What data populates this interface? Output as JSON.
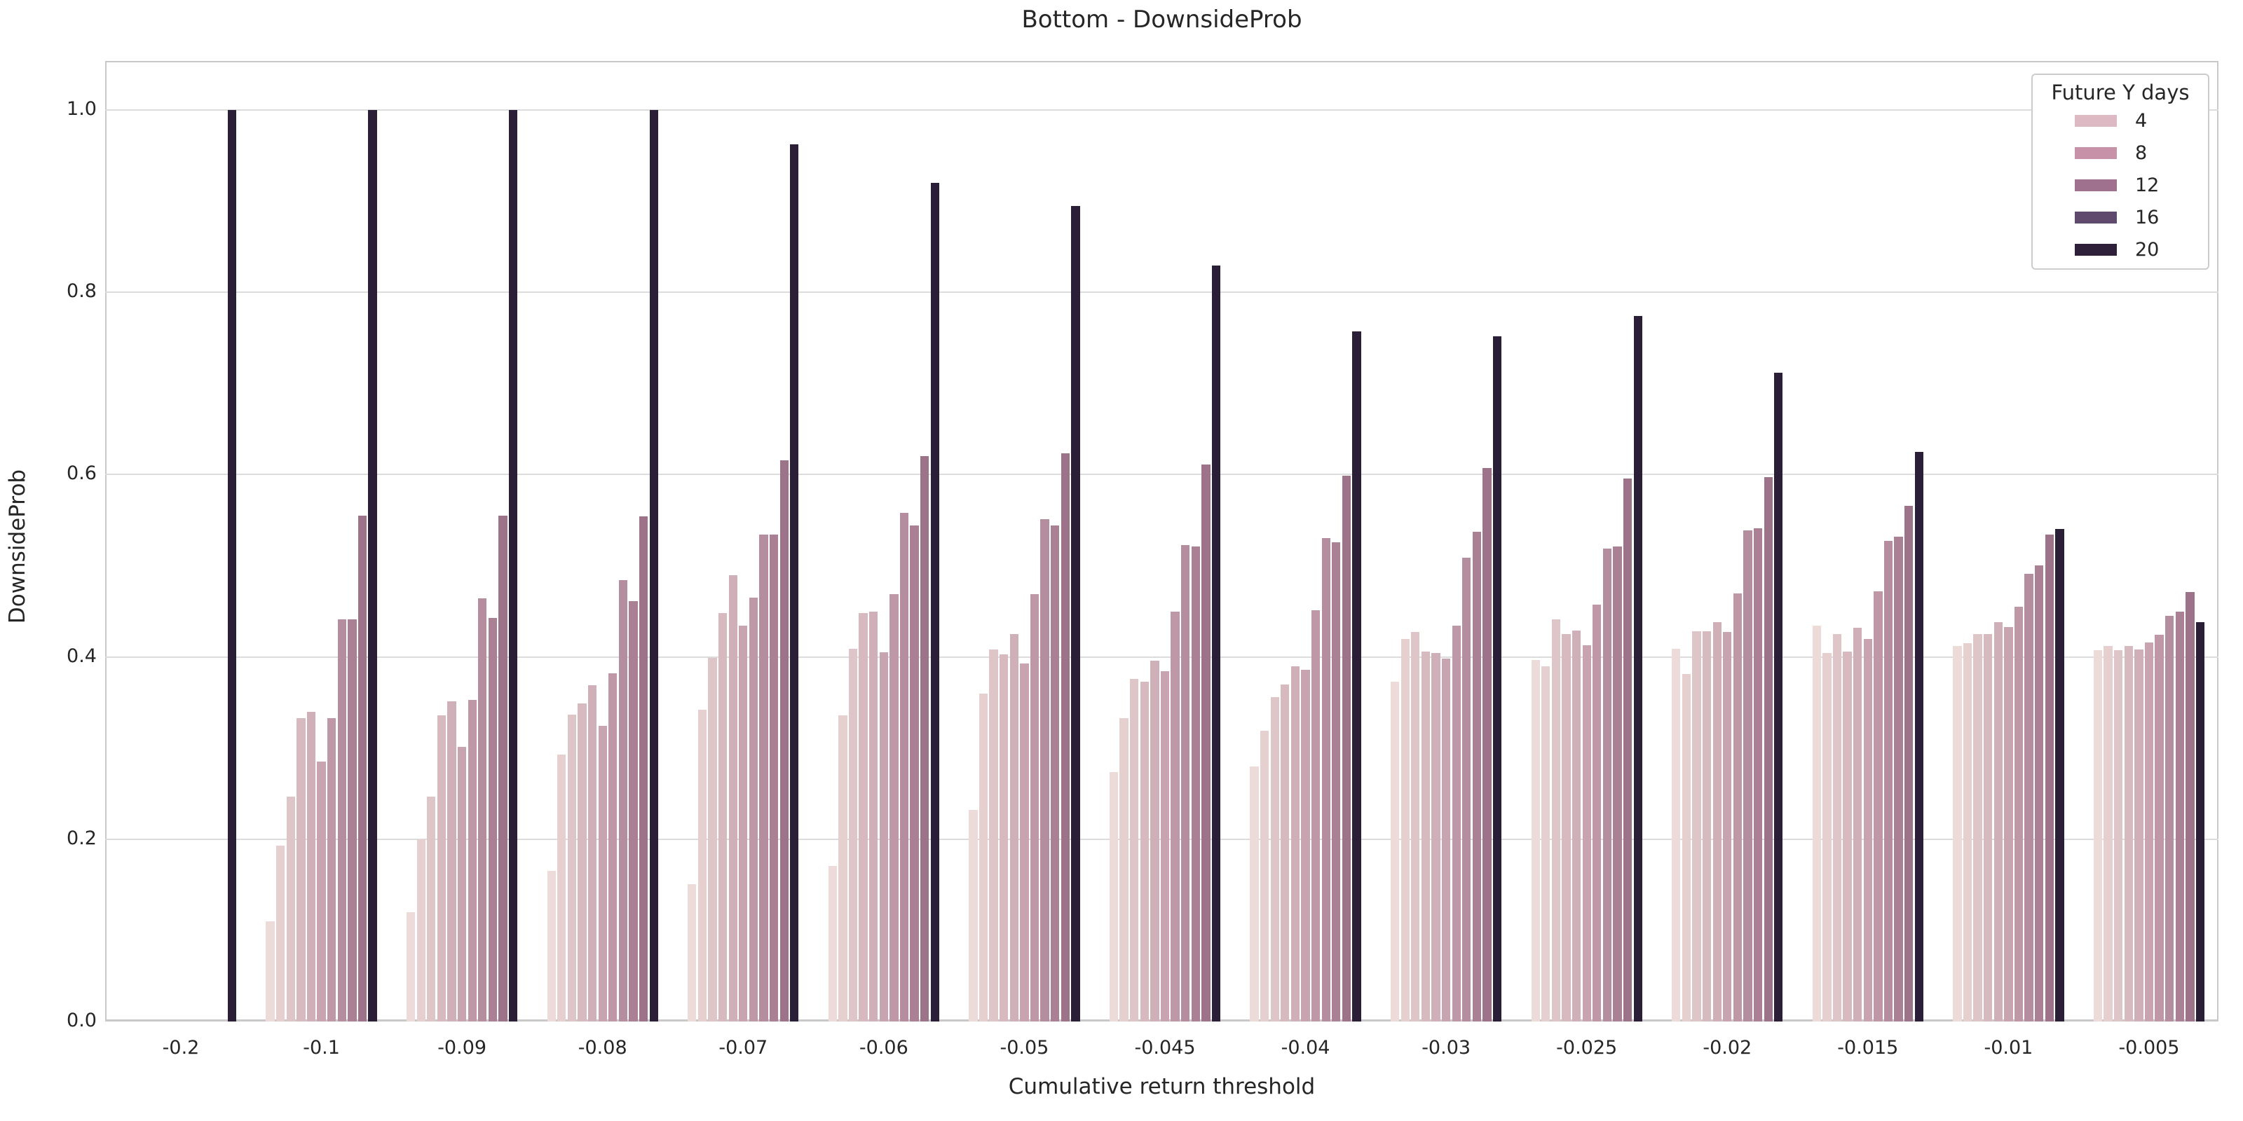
{
  "title": "Bottom - DownsideProb",
  "chart_data": {
    "type": "bar",
    "title": "Bottom - DownsideProb",
    "xlabel": "Cumulative return threshold",
    "ylabel": "DownsideProb",
    "ylim": [
      0.0,
      1.05
    ],
    "yticks": [
      "0.0",
      "0.2",
      "0.4",
      "0.6",
      "0.8",
      "1.0"
    ],
    "grid": true,
    "legend": {
      "title": "Future Y days",
      "position": "upper right",
      "entries": [
        {
          "label": "4",
          "color": "#ddb9c3"
        },
        {
          "label": "8",
          "color": "#c791a7"
        },
        {
          "label": "12",
          "color": "#a0718f"
        },
        {
          "label": "16",
          "color": "#5f4a6e"
        },
        {
          "label": "20",
          "color": "#2d2038"
        }
      ]
    },
    "series_colors": [
      "#ecdbd8",
      "#e5d0cf",
      "#ddc5c8",
      "#d6bac0",
      "#cfafb8",
      "#c7a4b0",
      "#be98a7",
      "#b48d9e",
      "#aa8194",
      "#9d7389",
      "#2b1f37"
    ],
    "categories": [
      "-0.2",
      "-0.1",
      "-0.09",
      "-0.08",
      "-0.07",
      "-0.06",
      "-0.05",
      "-0.045",
      "-0.04",
      "-0.03",
      "-0.025",
      "-0.02",
      "-0.015",
      "-0.01",
      "-0.005"
    ],
    "groups": [
      {
        "category": "-0.2",
        "values": [
          0,
          0,
          0,
          0,
          0,
          0,
          0,
          0,
          0,
          0,
          1.0
        ]
      },
      {
        "category": "-0.1",
        "values": [
          0.11,
          0.193,
          0.247,
          0.333,
          0.34,
          0.285,
          0.333,
          0.441,
          0.441,
          0.555,
          1.0
        ]
      },
      {
        "category": "-0.09",
        "values": [
          0.12,
          0.2,
          0.247,
          0.336,
          0.351,
          0.301,
          0.353,
          0.464,
          0.443,
          0.555,
          1.0
        ]
      },
      {
        "category": "-0.08",
        "values": [
          0.165,
          0.293,
          0.337,
          0.349,
          0.369,
          0.324,
          0.382,
          0.484,
          0.461,
          0.554,
          1.0
        ]
      },
      {
        "category": "-0.07",
        "values": [
          0.151,
          0.342,
          0.399,
          0.448,
          0.49,
          0.434,
          0.465,
          0.534,
          0.534,
          0.616,
          0.962
        ]
      },
      {
        "category": "-0.06",
        "values": [
          0.171,
          0.336,
          0.409,
          0.448,
          0.45,
          0.405,
          0.469,
          0.558,
          0.544,
          0.62,
          0.92
        ]
      },
      {
        "category": "-0.05",
        "values": [
          0.232,
          0.36,
          0.408,
          0.403,
          0.425,
          0.393,
          0.469,
          0.551,
          0.544,
          0.623,
          0.895
        ]
      },
      {
        "category": "-0.045",
        "values": [
          0.274,
          0.333,
          0.376,
          0.373,
          0.396,
          0.384,
          0.45,
          0.523,
          0.521,
          0.611,
          0.829
        ]
      },
      {
        "category": "-0.04",
        "values": [
          0.28,
          0.319,
          0.356,
          0.37,
          0.39,
          0.386,
          0.451,
          0.53,
          0.526,
          0.599,
          0.757
        ]
      },
      {
        "category": "-0.03",
        "values": [
          0.373,
          0.42,
          0.427,
          0.406,
          0.404,
          0.398,
          0.434,
          0.509,
          0.537,
          0.607,
          0.752
        ]
      },
      {
        "category": "-0.025",
        "values": [
          0.397,
          0.39,
          0.441,
          0.425,
          0.429,
          0.413,
          0.457,
          0.519,
          0.521,
          0.596,
          0.774
        ]
      },
      {
        "category": "-0.02",
        "values": [
          0.409,
          0.381,
          0.428,
          0.428,
          0.438,
          0.427,
          0.47,
          0.539,
          0.541,
          0.597,
          0.712
        ]
      },
      {
        "category": "-0.015",
        "values": [
          0.434,
          0.404,
          0.425,
          0.406,
          0.432,
          0.42,
          0.472,
          0.527,
          0.532,
          0.566,
          0.625
        ]
      },
      {
        "category": "-0.01",
        "values": [
          0.412,
          0.415,
          0.425,
          0.425,
          0.438,
          0.433,
          0.455,
          0.491,
          0.5,
          0.534,
          0.54
        ]
      },
      {
        "category": "-0.005",
        "values": [
          0.407,
          0.412,
          0.407,
          0.412,
          0.408,
          0.416,
          0.424,
          0.445,
          0.45,
          0.471,
          0.438
        ]
      }
    ]
  }
}
